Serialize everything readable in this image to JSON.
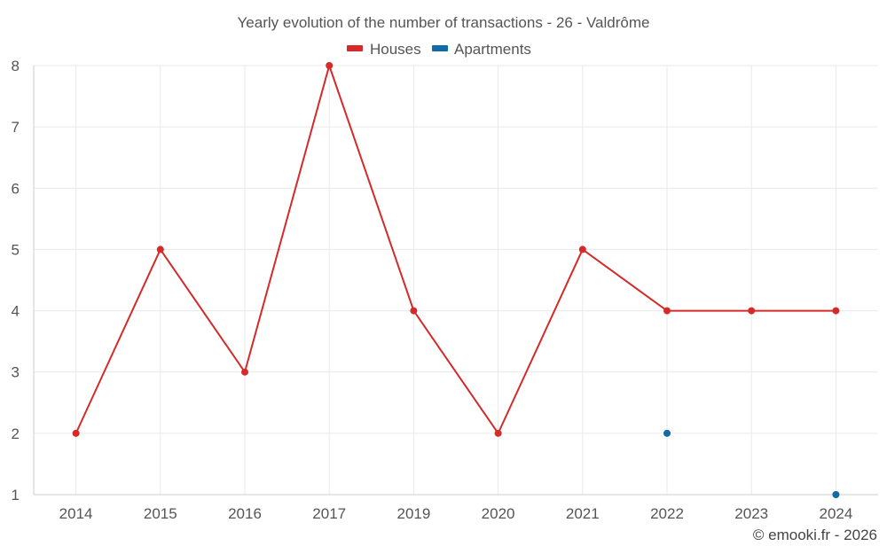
{
  "chart_data": {
    "type": "line",
    "title": "Yearly evolution of the number of transactions - 26 - Valdrôme",
    "categories": [
      "2014",
      "2015",
      "2016",
      "2017",
      "2019",
      "2020",
      "2021",
      "2022",
      "2023",
      "2024"
    ],
    "series": [
      {
        "name": "Houses",
        "color": "#d42a2a",
        "values": [
          2,
          5,
          3,
          8,
          4,
          2,
          5,
          4,
          4,
          4
        ]
      },
      {
        "name": "Apartments",
        "color": "#0f6aa6",
        "values": [
          null,
          null,
          null,
          null,
          null,
          null,
          null,
          2,
          null,
          1
        ]
      }
    ],
    "yticks": [
      "1",
      "2",
      "3",
      "4",
      "5",
      "6",
      "7",
      "8"
    ],
    "ylim": [
      1,
      8
    ],
    "grid": true,
    "legend": "top-center",
    "xlabel": "",
    "ylabel": ""
  },
  "footer": {
    "credit": "© emooki.fr - 2026"
  }
}
